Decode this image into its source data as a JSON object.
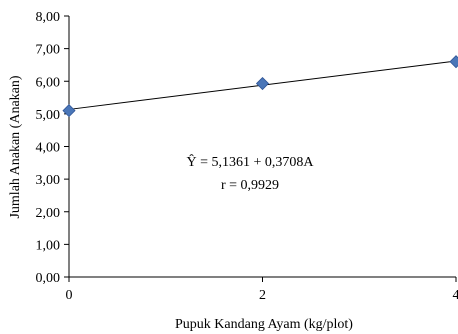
{
  "chart_data": {
    "type": "scatter",
    "xlabel": "Pupuk Kandang Ayam (kg/plot)",
    "ylabel": "Jumlah Anakan (Anakan)",
    "xlim": [
      0,
      4
    ],
    "ylim": [
      0,
      8
    ],
    "x_ticks": [
      0,
      2,
      4
    ],
    "x_tick_labels": [
      "0",
      "2",
      "4"
    ],
    "y_ticks": [
      0,
      1,
      2,
      3,
      4,
      5,
      6,
      7,
      8
    ],
    "y_tick_labels": [
      "0,00",
      "1,00",
      "2,00",
      "3,00",
      "4,00",
      "5,00",
      "6,00",
      "7,00",
      "8,00"
    ],
    "grid": false,
    "legend": "none",
    "series": [
      {
        "x": [
          0,
          2,
          4
        ],
        "y": [
          5.1,
          5.93,
          6.6
        ],
        "marker": "diamond",
        "color": "#4a76b8"
      }
    ],
    "trendline": {
      "intercept": 5.1361,
      "slope": 0.3708,
      "x_range": [
        0,
        4
      ],
      "color": "#000000"
    },
    "annotations": {
      "equation": "Ŷ = 5,1361 + 0,3708A",
      "r_value": "r = 0,9929"
    }
  }
}
